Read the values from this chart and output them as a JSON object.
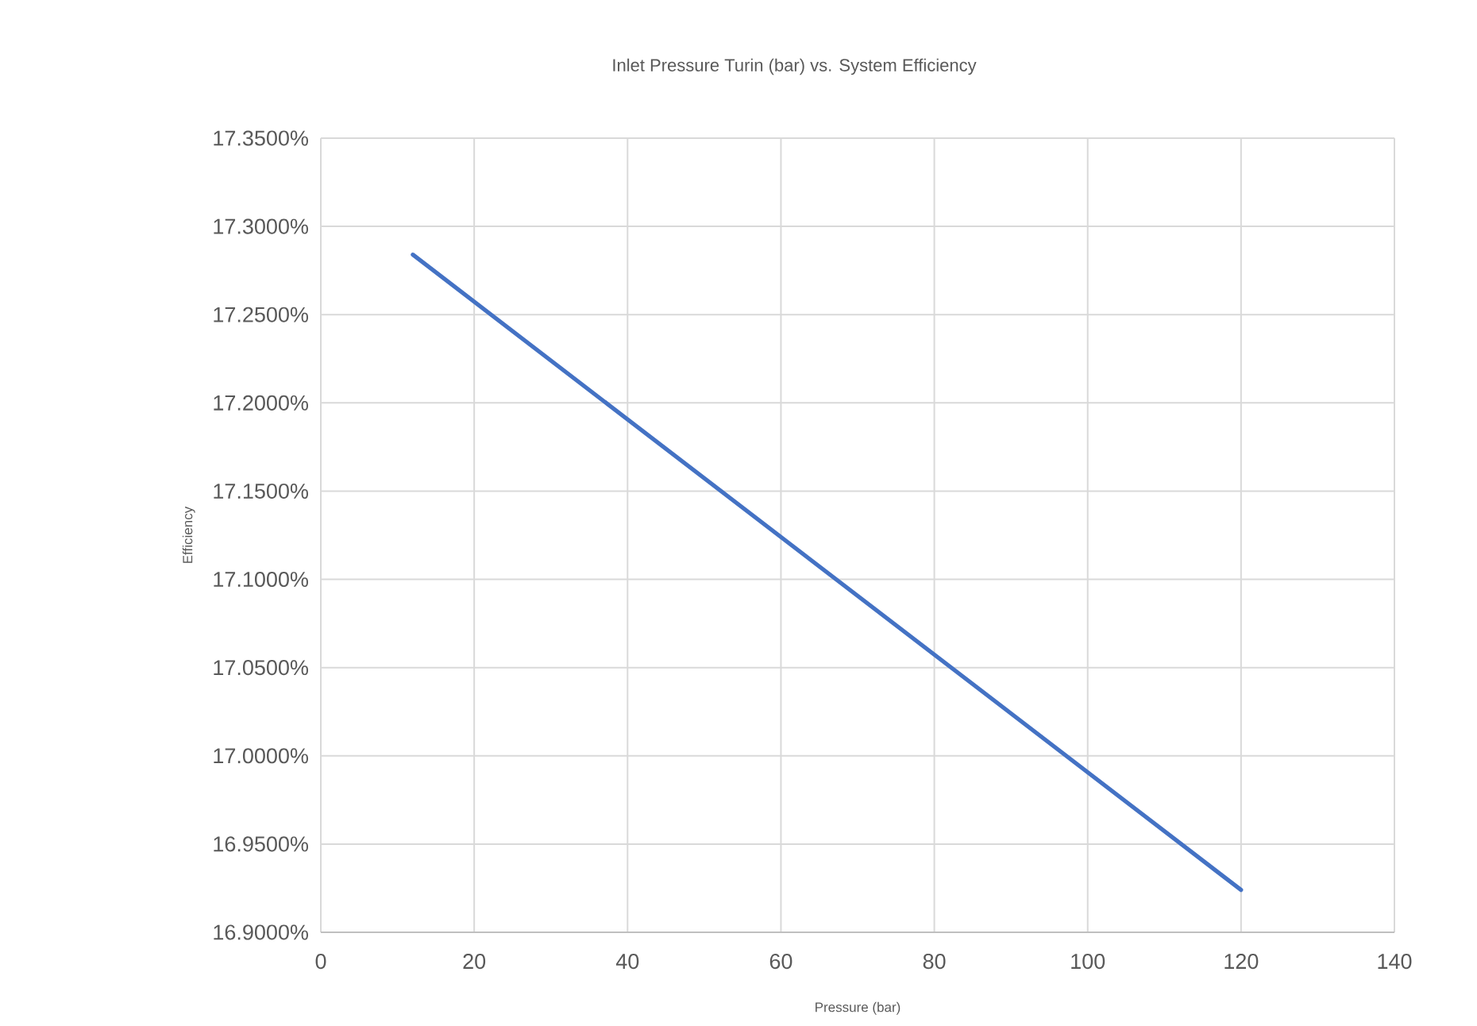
{
  "chart_data": {
    "type": "line",
    "title": "Inlet Pressure Turin (bar) vs. System Efficiency",
    "xlabel": "Pressure (bar)",
    "ylabel": "Efficiency",
    "x": [
      12,
      120
    ],
    "series": [
      {
        "color": "#4472c4",
        "values": [
          17.284,
          16.924
        ]
      }
    ],
    "xlim": [
      0,
      140
    ],
    "xticks": [
      0,
      20,
      40,
      60,
      80,
      100,
      120,
      140
    ],
    "ylim": [
      16.9,
      17.35
    ],
    "yticks": [
      {
        "value": 16.9,
        "label": "16.9000%"
      },
      {
        "value": 16.95,
        "label": "16.9500%"
      },
      {
        "value": 17.0,
        "label": "17.0000%"
      },
      {
        "value": 17.05,
        "label": "17.0500%"
      },
      {
        "value": 17.1,
        "label": "17.1000%"
      },
      {
        "value": 17.15,
        "label": "17.1500%"
      },
      {
        "value": 17.2,
        "label": "17.2000%"
      },
      {
        "value": 17.25,
        "label": "17.2500%"
      },
      {
        "value": 17.3,
        "label": "17.3000%"
      },
      {
        "value": 17.35,
        "label": "17.3500%"
      }
    ],
    "grid": true,
    "marker": "none",
    "line_style": "solid"
  }
}
